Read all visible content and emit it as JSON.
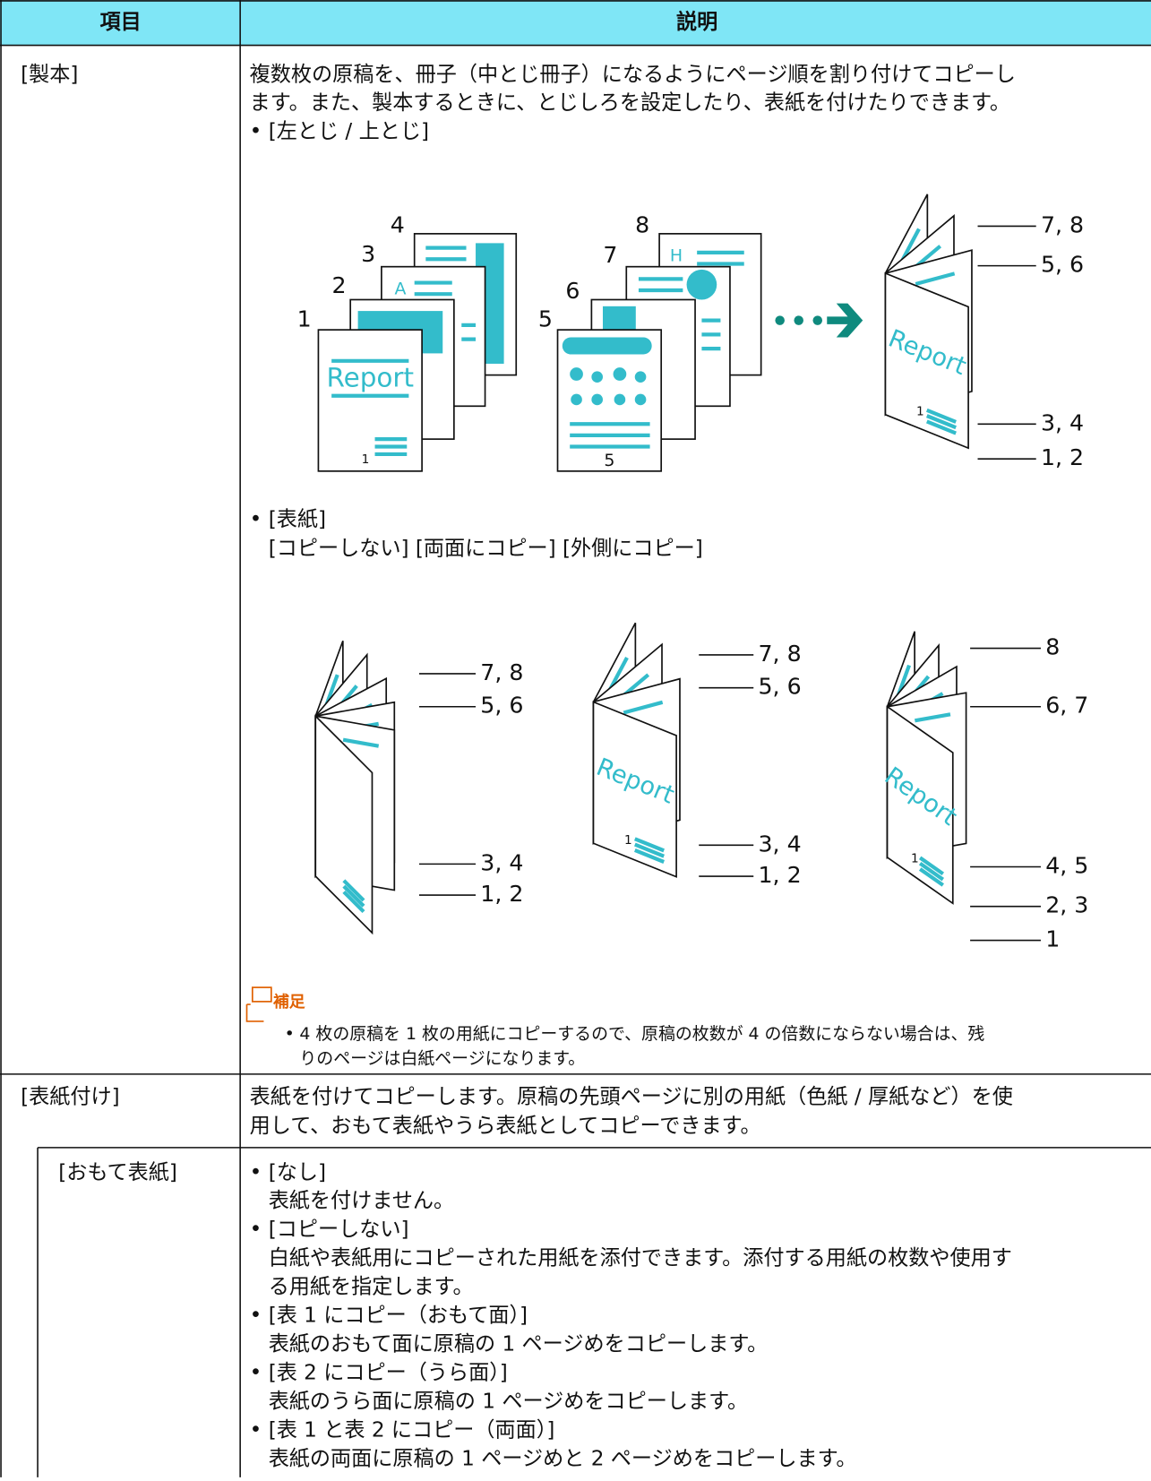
{
  "table": {
    "header": [
      "項目",
      "説明"
    ],
    "rows": [
      {
        "item": "[製本]",
        "description": [
          "複数枚の原稿を、冊子（中とじ冊子）になるようにページ順を割り付けてコピーし",
          "ます。また、製本するときに、とじしろを設定したり、表紙を付けたりできます。"
        ],
        "bullets": [
          {
            "label": "[左とじ / 上とじ]"
          },
          {
            "label": "[表紙]",
            "options": "[コピーしない] [両面にコピー] [外側にコピー]"
          }
        ],
        "figure1": {
          "stack_a_numbers": [
            "1",
            "2",
            "3",
            "4"
          ],
          "stack_a_letter": "A",
          "stack_a_cover": "Report",
          "stack_a_page_number": "1",
          "stack_b_numbers": [
            "5",
            "6",
            "7",
            "8"
          ],
          "stack_b_letter": "H",
          "stack_b_page_number": "5",
          "booklet_cover": "Report",
          "booklet_page_number": "1",
          "booklet_labels": [
            "7, 8",
            "5, 6",
            "3, 4",
            "1, 2"
          ]
        },
        "figure2": {
          "booklets": [
            {
              "labels": [
                "7, 8",
                "5, 6",
                "3, 4",
                "1, 2"
              ]
            },
            {
              "cover": "Report",
              "page_number": "1",
              "labels": [
                "7, 8",
                "5, 6",
                "3, 4",
                "1, 2"
              ]
            },
            {
              "cover": "Report",
              "page_number": "1",
              "labels": [
                "8",
                "6, 7",
                "4, 5",
                "2, 3",
                "1"
              ]
            }
          ]
        },
        "note": {
          "title": "補足",
          "lines": [
            "4 枚の原稿を 1 枚の用紙にコピーするので、原稿の枚数が 4 の倍数にならない場合は、残",
            "りのページは白紙ページになります。"
          ]
        }
      },
      {
        "item": "[表紙付け]",
        "description": [
          "表紙を付けてコピーします。原稿の先頭ページに別の用紙（色紙 / 厚紙など）を使",
          "用して、おもて表紙やうら表紙としてコピーできます。"
        ]
      },
      {
        "item": "[おもて表紙]",
        "bullets": [
          {
            "label": "[なし]",
            "lines": [
              "表紙を付けません。"
            ]
          },
          {
            "label": "[コピーしない]",
            "lines": [
              "白紙や表紙用にコピーされた用紙を添付できます。添付する用紙の枚数や使用す",
              "る用紙を指定します。"
            ]
          },
          {
            "label": "[表 1 にコピー（おもて面）]",
            "lines": [
              "表紙のおもて面に原稿の 1 ページめをコピーします。"
            ]
          },
          {
            "label": "[表 2 にコピー（うら面）]",
            "lines": [
              "表紙のうら面に原稿の 1 ページめをコピーします。"
            ]
          },
          {
            "label": "[表 1 と表 2 にコピー（両面）]",
            "lines": [
              "表紙の両面に原稿の 1 ページめと 2 ページめをコピーします。"
            ]
          }
        ]
      }
    ]
  }
}
